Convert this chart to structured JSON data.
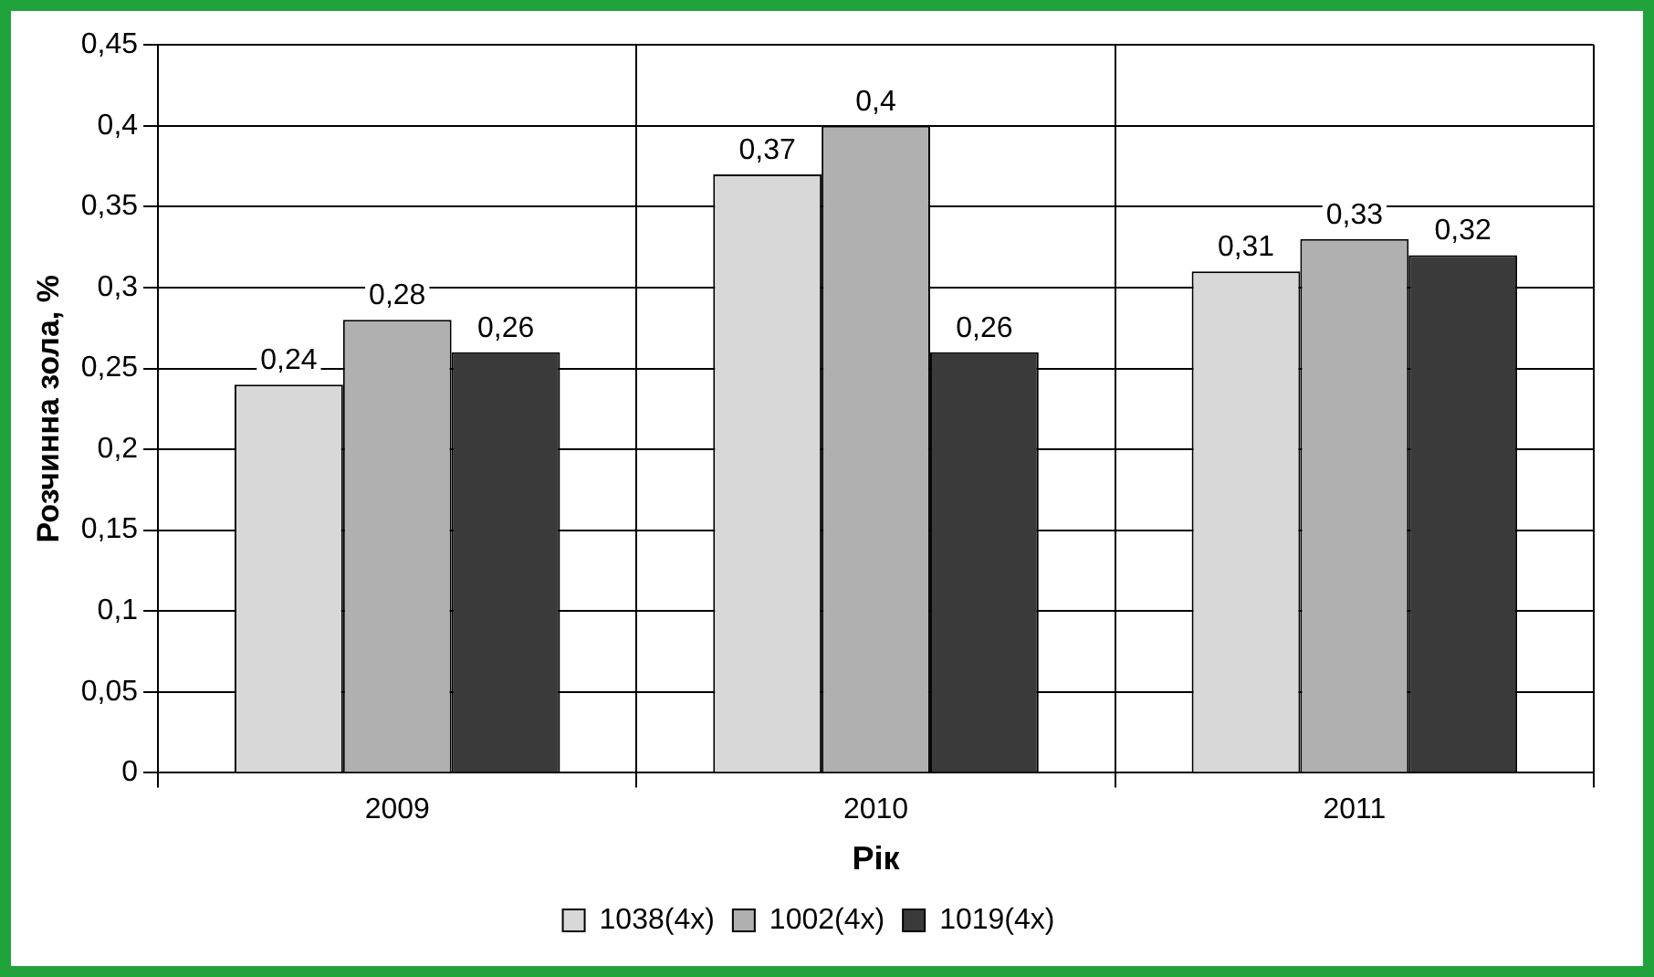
{
  "chart_data": {
    "type": "bar",
    "xlabel": "Рік",
    "ylabel": "Розчинна зола, %",
    "categories": [
      "2009",
      "2010",
      "2011"
    ],
    "series": [
      {
        "name": "1038(4x)",
        "color": "#d8d8d8",
        "values": [
          0.24,
          0.37,
          0.31
        ],
        "value_labels": [
          "0,24",
          "0,37",
          "0,31"
        ]
      },
      {
        "name": "1002(4x)",
        "color": "#b0b0b0",
        "values": [
          0.28,
          0.4,
          0.33
        ],
        "value_labels": [
          "0,28",
          "0,4",
          "0,33"
        ]
      },
      {
        "name": "1019(4x)",
        "color": "#3a3a3a",
        "values": [
          0.26,
          0.26,
          0.32
        ],
        "value_labels": [
          "0,26",
          "0,26",
          "0,32"
        ]
      }
    ],
    "ylim": [
      0,
      0.45
    ],
    "yticks": [
      {
        "value": 0,
        "label": "0"
      },
      {
        "value": 0.05,
        "label": "0,05"
      },
      {
        "value": 0.1,
        "label": "0,1"
      },
      {
        "value": 0.15,
        "label": "0,15"
      },
      {
        "value": 0.2,
        "label": "0,2"
      },
      {
        "value": 0.25,
        "label": "0,25"
      },
      {
        "value": 0.3,
        "label": "0,3"
      },
      {
        "value": 0.35,
        "label": "0,35"
      },
      {
        "value": 0.4,
        "label": "0,4"
      },
      {
        "value": 0.45,
        "label": "0,45"
      }
    ],
    "grid": true,
    "legend": "bottom"
  }
}
